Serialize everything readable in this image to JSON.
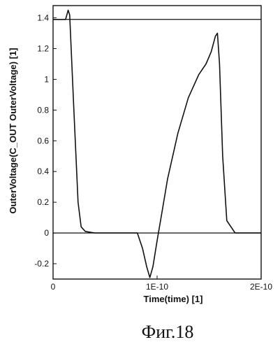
{
  "chart_data": {
    "type": "line",
    "xlabel": "Time(time) [1]",
    "ylabel": "OuterVoltage(C_OUT OuterVoltage) [1]",
    "xlim": [
      0,
      2e-10
    ],
    "ylim": [
      -0.3,
      1.48
    ],
    "x_ticks": [
      {
        "value": 0,
        "label": "0"
      },
      {
        "value": 1e-10,
        "label": "1E-10"
      },
      {
        "value": 2e-10,
        "label": "2E-10"
      }
    ],
    "y_ticks": [
      {
        "value": -0.2,
        "label": "-0.2"
      },
      {
        "value": 0,
        "label": "0"
      },
      {
        "value": 0.2,
        "label": "0.2"
      },
      {
        "value": 0.4,
        "label": "0.4"
      },
      {
        "value": 0.6,
        "label": "0.6"
      },
      {
        "value": 0.8,
        "label": "0.8"
      },
      {
        "value": 1,
        "label": "1"
      },
      {
        "value": 1.2,
        "label": "1.2"
      },
      {
        "value": 1.4,
        "label": "1.4"
      }
    ],
    "reference_lines": [
      1.39,
      0
    ],
    "grid": false,
    "series": [
      {
        "color": "#111111",
        "x": [
          0,
          1.2e-11,
          1.45e-11,
          1.6e-11,
          2e-11,
          2.4e-11,
          2.7e-11,
          3.1e-11,
          4e-11,
          6e-11,
          8.1e-11,
          8.6e-11,
          9e-11,
          9.3e-11,
          9.6e-11,
          1e-10,
          1.05e-10,
          1.1e-10,
          1.2e-10,
          1.3e-10,
          1.4e-10,
          1.47e-10,
          1.52e-10,
          1.56e-10,
          1.58e-10,
          1.6e-10,
          1.63e-10,
          1.67e-10,
          1.75e-10,
          2e-10
        ],
        "y": [
          1.39,
          1.39,
          1.45,
          1.42,
          0.8,
          0.2,
          0.04,
          0.01,
          0.0,
          0.0,
          0.0,
          -0.1,
          -0.22,
          -0.29,
          -0.22,
          -0.05,
          0.15,
          0.35,
          0.65,
          0.88,
          1.03,
          1.1,
          1.18,
          1.28,
          1.3,
          1.1,
          0.5,
          0.08,
          0.0,
          0.0
        ]
      }
    ]
  },
  "caption": "Фиг.18"
}
